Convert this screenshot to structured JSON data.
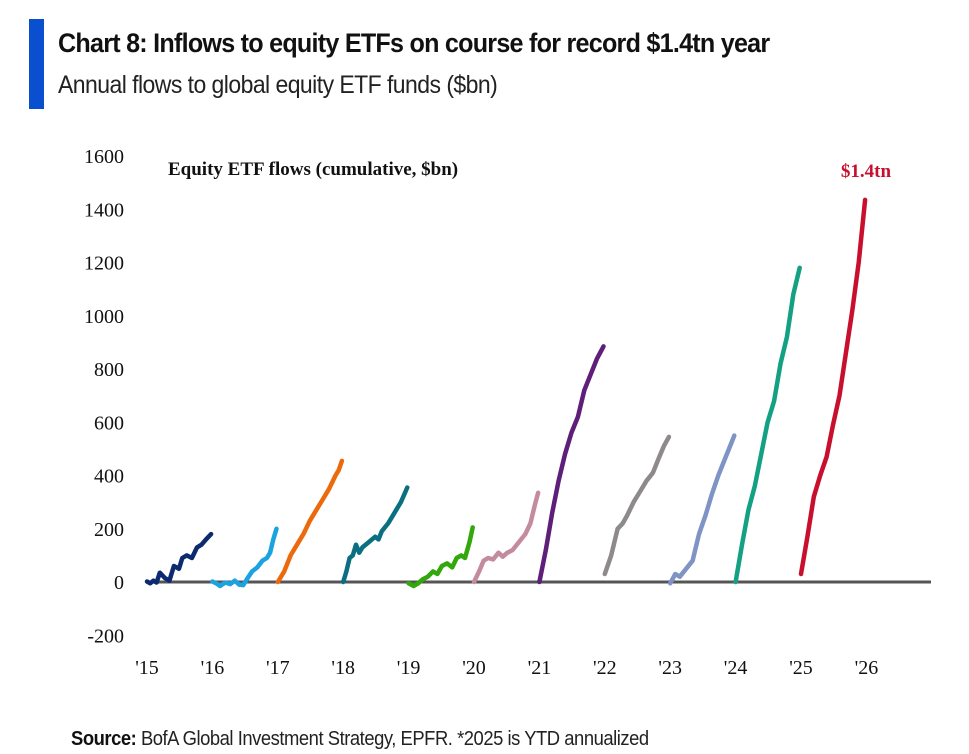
{
  "header": {
    "title": "Chart 8: Inflows to equity ETFs on course for record $1.4tn year",
    "subtitle": "Annual flows to global equity ETF funds ($bn)",
    "accent_color": "#0a4fcf"
  },
  "footer": {
    "source_label": "Source:",
    "source_text": " BofA Global Investment Strategy, EPFR. *2025 is YTD annualized"
  },
  "chart_data": {
    "type": "line",
    "title": "Equity ETF flows (cumulative, $bn)",
    "xlabel": "",
    "ylabel": "",
    "ylim": [
      -200,
      1600
    ],
    "yticks": [
      1600,
      1400,
      1200,
      1000,
      800,
      600,
      400,
      200,
      0,
      -200
    ],
    "xticks": [
      "'15",
      "'16",
      "'17",
      "'18",
      "'19",
      "'20",
      "'21",
      "'22",
      "'23",
      "'24",
      "'25",
      "'26"
    ],
    "grid": false,
    "legend": "none",
    "annotation": {
      "text": "$1.4tn",
      "year": 2025,
      "color": "#c8102e"
    },
    "x_unit": "fraction of year",
    "series": [
      {
        "name": "2015",
        "color": "#0b2a6f",
        "points": [
          [
            0,
            2
          ],
          [
            0.05,
            -5
          ],
          [
            0.1,
            5
          ],
          [
            0.15,
            -2
          ],
          [
            0.2,
            35
          ],
          [
            0.28,
            15
          ],
          [
            0.35,
            5
          ],
          [
            0.42,
            60
          ],
          [
            0.5,
            50
          ],
          [
            0.55,
            90
          ],
          [
            0.62,
            100
          ],
          [
            0.7,
            90
          ],
          [
            0.78,
            130
          ],
          [
            0.85,
            140
          ],
          [
            0.92,
            160
          ],
          [
            1,
            180
          ]
        ]
      },
      {
        "name": "2016",
        "color": "#1aa3e0",
        "points": [
          [
            0,
            2
          ],
          [
            0.06,
            -5
          ],
          [
            0.12,
            -15
          ],
          [
            0.2,
            -2
          ],
          [
            0.28,
            -8
          ],
          [
            0.35,
            5
          ],
          [
            0.42,
            -10
          ],
          [
            0.48,
            -12
          ],
          [
            0.55,
            15
          ],
          [
            0.62,
            40
          ],
          [
            0.7,
            55
          ],
          [
            0.78,
            80
          ],
          [
            0.85,
            90
          ],
          [
            0.9,
            110
          ],
          [
            0.95,
            160
          ],
          [
            1,
            200
          ]
        ]
      },
      {
        "name": "2017",
        "color": "#ec6a0c",
        "points": [
          [
            0,
            0
          ],
          [
            0.1,
            40
          ],
          [
            0.2,
            100
          ],
          [
            0.3,
            140
          ],
          [
            0.4,
            180
          ],
          [
            0.5,
            230
          ],
          [
            0.6,
            270
          ],
          [
            0.7,
            310
          ],
          [
            0.8,
            350
          ],
          [
            0.9,
            400
          ],
          [
            0.95,
            420
          ],
          [
            1,
            455
          ]
        ]
      },
      {
        "name": "2018",
        "color": "#0a6f80",
        "points": [
          [
            0,
            0
          ],
          [
            0.05,
            40
          ],
          [
            0.1,
            90
          ],
          [
            0.15,
            100
          ],
          [
            0.2,
            140
          ],
          [
            0.25,
            110
          ],
          [
            0.3,
            130
          ],
          [
            0.4,
            150
          ],
          [
            0.5,
            170
          ],
          [
            0.55,
            160
          ],
          [
            0.6,
            190
          ],
          [
            0.7,
            220
          ],
          [
            0.8,
            260
          ],
          [
            0.9,
            300
          ],
          [
            1,
            355
          ]
        ]
      },
      {
        "name": "2019",
        "color": "#32a80d",
        "points": [
          [
            0,
            -5
          ],
          [
            0.08,
            -15
          ],
          [
            0.15,
            -5
          ],
          [
            0.22,
            10
          ],
          [
            0.3,
            20
          ],
          [
            0.38,
            40
          ],
          [
            0.45,
            30
          ],
          [
            0.52,
            60
          ],
          [
            0.6,
            70
          ],
          [
            0.68,
            55
          ],
          [
            0.75,
            90
          ],
          [
            0.82,
            100
          ],
          [
            0.88,
            90
          ],
          [
            0.95,
            150
          ],
          [
            1,
            205
          ]
        ]
      },
      {
        "name": "2020",
        "color": "#c48b9f",
        "points": [
          [
            0,
            0
          ],
          [
            0.08,
            40
          ],
          [
            0.15,
            80
          ],
          [
            0.22,
            90
          ],
          [
            0.3,
            85
          ],
          [
            0.38,
            110
          ],
          [
            0.45,
            95
          ],
          [
            0.52,
            110
          ],
          [
            0.6,
            120
          ],
          [
            0.7,
            150
          ],
          [
            0.8,
            180
          ],
          [
            0.88,
            220
          ],
          [
            0.95,
            290
          ],
          [
            1,
            335
          ]
        ]
      },
      {
        "name": "2021",
        "color": "#5e1f7a",
        "points": [
          [
            0,
            0
          ],
          [
            0.1,
            120
          ],
          [
            0.2,
            260
          ],
          [
            0.3,
            380
          ],
          [
            0.4,
            480
          ],
          [
            0.5,
            560
          ],
          [
            0.6,
            620
          ],
          [
            0.7,
            720
          ],
          [
            0.8,
            780
          ],
          [
            0.9,
            840
          ],
          [
            1,
            885
          ]
        ]
      },
      {
        "name": "2022",
        "color": "#8e8a8a",
        "points": [
          [
            0,
            30
          ],
          [
            0.1,
            100
          ],
          [
            0.2,
            200
          ],
          [
            0.28,
            220
          ],
          [
            0.35,
            250
          ],
          [
            0.45,
            300
          ],
          [
            0.55,
            340
          ],
          [
            0.65,
            380
          ],
          [
            0.75,
            410
          ],
          [
            0.85,
            470
          ],
          [
            0.92,
            510
          ],
          [
            1,
            545
          ]
        ]
      },
      {
        "name": "2023",
        "color": "#7f93c4",
        "points": [
          [
            0,
            -5
          ],
          [
            0.08,
            30
          ],
          [
            0.15,
            20
          ],
          [
            0.25,
            50
          ],
          [
            0.35,
            80
          ],
          [
            0.45,
            180
          ],
          [
            0.55,
            250
          ],
          [
            0.65,
            330
          ],
          [
            0.75,
            400
          ],
          [
            0.85,
            460
          ],
          [
            0.95,
            520
          ],
          [
            1,
            550
          ]
        ]
      },
      {
        "name": "2024",
        "color": "#13a083",
        "points": [
          [
            0,
            0
          ],
          [
            0.1,
            140
          ],
          [
            0.2,
            270
          ],
          [
            0.3,
            360
          ],
          [
            0.4,
            480
          ],
          [
            0.5,
            600
          ],
          [
            0.6,
            680
          ],
          [
            0.7,
            820
          ],
          [
            0.8,
            920
          ],
          [
            0.9,
            1080
          ],
          [
            1,
            1180
          ]
        ]
      },
      {
        "name": "2025",
        "color": "#c8102e",
        "points": [
          [
            0,
            30
          ],
          [
            0.1,
            170
          ],
          [
            0.2,
            320
          ],
          [
            0.3,
            400
          ],
          [
            0.4,
            470
          ],
          [
            0.5,
            590
          ],
          [
            0.6,
            700
          ],
          [
            0.7,
            860
          ],
          [
            0.8,
            1020
          ],
          [
            0.9,
            1200
          ],
          [
            1,
            1435
          ]
        ]
      }
    ]
  }
}
